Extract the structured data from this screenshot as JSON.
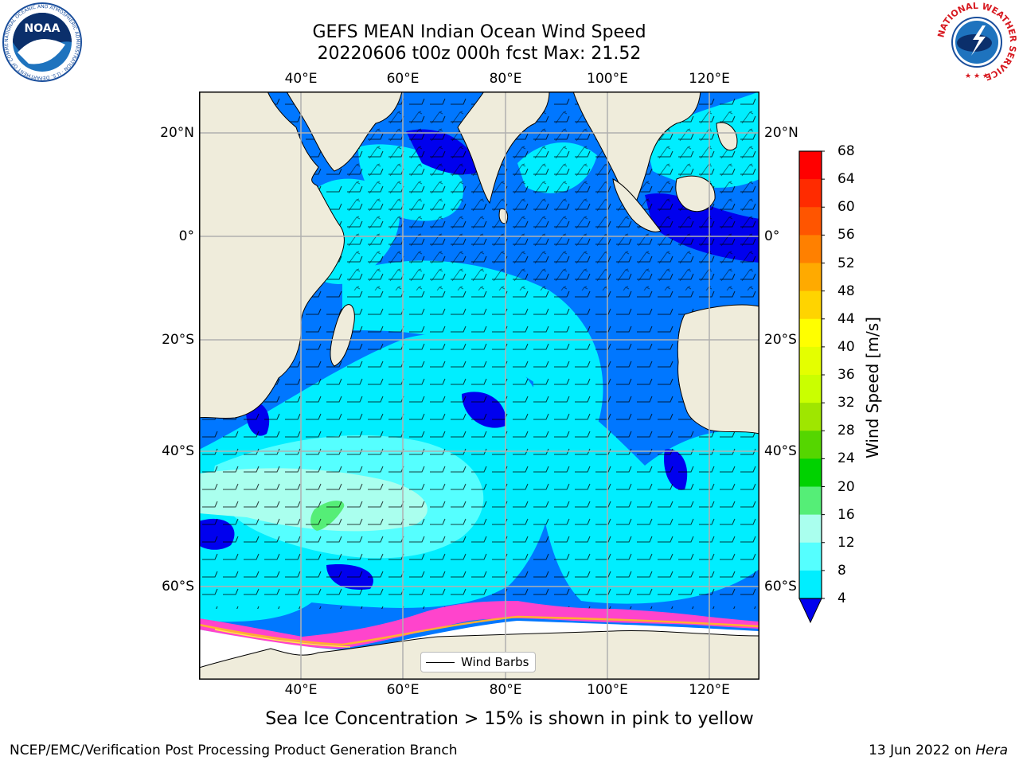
{
  "title": {
    "line1": "GEFS MEAN Indian Ocean Wind Speed",
    "line2": "20220606 t00z 000h fcst   Max: 21.52"
  },
  "map": {
    "lon_ticks": [
      "40°E",
      "60°E",
      "80°E",
      "100°E",
      "120°E"
    ],
    "lat_ticks": [
      "20°N",
      "0°",
      "20°S",
      "40°S",
      "60°S"
    ],
    "land_color": "#efecdb",
    "ice_colors": [
      "#ff44cc",
      "#ffb030",
      "#fff040"
    ],
    "legend_label": "Wind Barbs"
  },
  "colorbar": {
    "label": "Wind Speed [m/s]",
    "levels": [
      "68",
      "64",
      "60",
      "56",
      "52",
      "48",
      "44",
      "40",
      "36",
      "32",
      "28",
      "24",
      "20",
      "16",
      "12",
      "8",
      "4"
    ],
    "colors": [
      "#ff0000",
      "#ff2b00",
      "#ff5500",
      "#ff8000",
      "#ffaa00",
      "#ffd400",
      "#ffff00",
      "#e4ff00",
      "#caff00",
      "#9fe600",
      "#55d600",
      "#00d200",
      "#55ee77",
      "#aaffee",
      "#55ffff",
      "#00eeff",
      "#0077ff"
    ],
    "under_color": "#0000ee"
  },
  "sea_ice_note": "Sea Ice Concentration > 15% is shown in pink to yellow",
  "footer": {
    "left": "NCEP/EMC/Verification Post Processing Product Generation Branch",
    "date": "13 Jun 2022 on ",
    "machine": "Hera"
  },
  "logos": {
    "noaa_text": "NOAA",
    "noaa_ring": "NATIONAL OCEANIC AND ATMOSPHERIC ADMINISTRATION · U.S. DEPARTMENT OF COMMERCE",
    "nws_ring": "NATIONAL WEATHER SERVICE"
  }
}
